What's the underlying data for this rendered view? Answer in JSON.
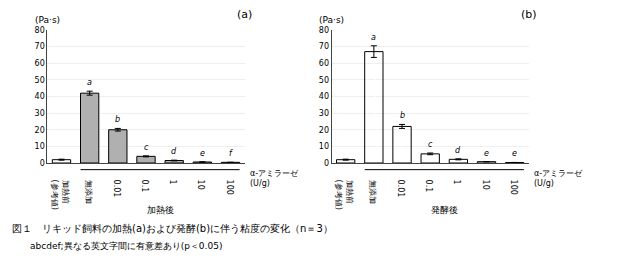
{
  "chart_data": [
    {
      "type": "bar",
      "title": "(a)",
      "ylabel": "(Pa·s)",
      "xlabel": "加熱後",
      "xlabel_right": [
        "α-アミラーゼ",
        "(U/g)"
      ],
      "categories": [
        "加熱前\n(参考値)",
        "無添加",
        "0.01",
        "0.1",
        "1",
        "10",
        "100"
      ],
      "values": [
        2.0,
        42.0,
        20.0,
        4.0,
        1.5,
        0.6,
        0.4
      ],
      "errors": [
        0.3,
        1.2,
        0.8,
        0.3,
        0.2,
        0.1,
        0.05
      ],
      "letter_labels": [
        null,
        "a",
        "b",
        "c",
        "d",
        "e",
        "f"
      ],
      "colors": [
        "white",
        "#b0b0b0",
        "#b0b0b0",
        "#b0b0b0",
        "#b0b0b0",
        "#b0b0b0",
        "#b0b0b0"
      ],
      "ylim": [
        0,
        80
      ],
      "yticks": [
        0,
        10,
        20,
        30,
        40,
        50,
        60,
        70,
        80
      ],
      "grid": true
    },
    {
      "type": "bar",
      "title": "(b)",
      "ylabel": "(Pa·s)",
      "xlabel": "発酵後",
      "xlabel_right": [
        "α-アミラーゼ",
        "(U/g)"
      ],
      "categories": [
        "加熱前\n(参考値)",
        "無添加",
        "0.01",
        "0.1",
        "1",
        "10",
        "100"
      ],
      "values": [
        2.0,
        67.0,
        22.0,
        5.5,
        2.2,
        0.8,
        0.3
      ],
      "errors": [
        0.3,
        3.5,
        1.2,
        0.5,
        0.3,
        0.1,
        0.05
      ],
      "letter_labels": [
        null,
        "a",
        "b",
        "c",
        "d",
        "e",
        "e"
      ],
      "colors": [
        "white",
        "white",
        "white",
        "white",
        "white",
        "white",
        "white"
      ],
      "marker": "hatch",
      "ylim": [
        0,
        80
      ],
      "yticks": [
        0,
        10,
        20,
        30,
        40,
        50,
        60,
        70,
        80
      ],
      "grid": true
    }
  ],
  "caption": "図１　リキッド飼料の加熱(a)および発酵(b)に伴う粘度の変化（n＝3）",
  "note": "abcdef;異なる英文字間に有意差あり(p＜0.05)"
}
